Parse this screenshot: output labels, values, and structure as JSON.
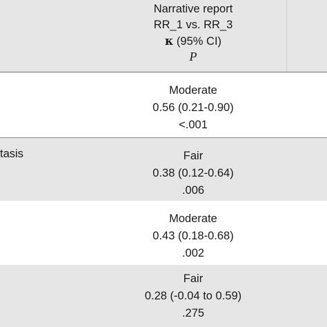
{
  "header": {
    "line1": "Narrative report",
    "line2": "RR_1 vs. RR_3",
    "kappa_symbol": "κ",
    "kappa_rest": " (95% CI)",
    "p_label": "P"
  },
  "rows": [
    {
      "label": "",
      "agreement": "Moderate",
      "kappa_ci": "0.56 (0.21-0.90)",
      "p": "<.001"
    },
    {
      "label": "tasis",
      "agreement": "Fair",
      "kappa_ci": "0.38 (0.12-0.64)",
      "p": ".006"
    },
    {
      "label": "",
      "agreement": "Moderate",
      "kappa_ci": "0.43 (0.18-0.68)",
      "p": ".002"
    },
    {
      "label": "",
      "agreement": "Fair",
      "kappa_ci": "0.28 (-0.04 to 0.59)",
      "p": ".275"
    }
  ]
}
